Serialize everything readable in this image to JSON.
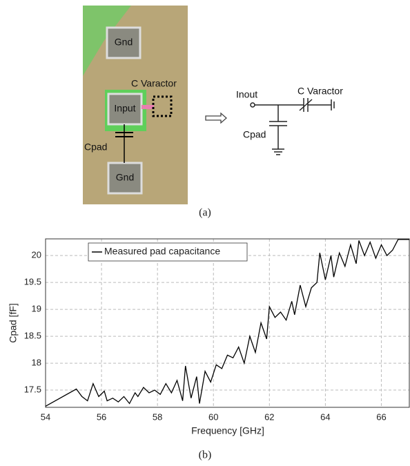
{
  "figure_a": {
    "die_labels": [
      "Gnd",
      "Input",
      "Gnd"
    ],
    "die_varactor": "C Varactor",
    "die_cpad": "Cpad",
    "schematic_input": "Inout",
    "schematic_varactor": "C Varactor",
    "schematic_cpad": "Cpad",
    "caption": "(a)"
  },
  "caption_b": "(b)",
  "chart_data": {
    "type": "line",
    "xlabel": "Frequency [GHz]",
    "ylabel": "Cpad [fF]",
    "x": [
      54,
      55.1,
      55.3,
      55.5,
      55.7,
      55.9,
      56.1,
      56.2,
      56.4,
      56.6,
      56.8,
      57.0,
      57.2,
      57.3,
      57.5,
      57.7,
      57.9,
      58.1,
      58.3,
      58.5,
      58.7,
      58.9,
      59.0,
      59.2,
      59.4,
      59.5,
      59.7,
      59.9,
      60.1,
      60.3,
      60.5,
      60.7,
      60.9,
      61.1,
      61.3,
      61.5,
      61.7,
      61.9,
      62.0,
      62.2,
      62.4,
      62.6,
      62.8,
      62.9,
      63.1,
      63.3,
      63.5,
      63.7,
      63.8,
      64.0,
      64.2,
      64.3,
      64.5,
      64.7,
      64.9,
      65.1,
      65.2,
      65.4,
      65.6,
      65.8,
      66.0,
      66.2,
      66.4,
      66.6,
      67.0
    ],
    "series": [
      {
        "name": "Measured pad capacitance",
        "color": "#000000",
        "values": [
          17.2,
          17.52,
          17.38,
          17.3,
          17.62,
          17.38,
          17.48,
          17.3,
          17.35,
          17.28,
          17.38,
          17.25,
          17.45,
          17.38,
          17.55,
          17.45,
          17.5,
          17.42,
          17.62,
          17.45,
          17.68,
          17.3,
          17.95,
          17.35,
          17.75,
          17.25,
          17.85,
          17.65,
          17.97,
          17.9,
          18.15,
          18.1,
          18.3,
          18.0,
          18.5,
          18.2,
          18.75,
          18.45,
          19.05,
          18.85,
          18.95,
          18.8,
          19.15,
          18.9,
          19.45,
          19.05,
          19.4,
          19.5,
          20.05,
          19.55,
          20.0,
          19.6,
          20.05,
          19.8,
          20.2,
          19.85,
          20.28,
          20.0,
          20.25,
          19.95,
          20.2,
          20.0,
          20.1,
          20.3,
          20.3
        ]
      }
    ],
    "xlim": [
      54,
      67
    ],
    "xticks": [
      54,
      56,
      58,
      60,
      62,
      64,
      66
    ],
    "ylim": [
      17.18,
      20.31
    ],
    "yticks": [
      17.5,
      18,
      18.5,
      19,
      19.5,
      20
    ],
    "grid": true,
    "legend": "upper left"
  }
}
